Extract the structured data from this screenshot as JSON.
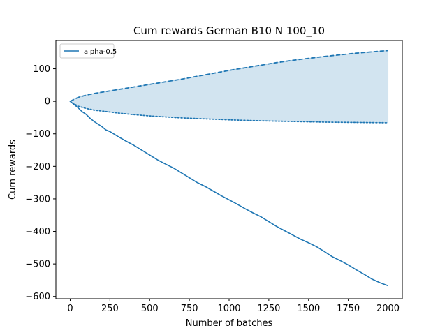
{
  "chart_data": {
    "type": "line",
    "title": "Cum rewards German B10 N 100_10",
    "xlabel": "Number of batches",
    "ylabel": "Cum rewards",
    "xlim": [
      -90,
      2090
    ],
    "ylim": [
      -607,
      187
    ],
    "xticks": [
      0,
      250,
      500,
      750,
      1000,
      1250,
      1500,
      1750,
      2000
    ],
    "yticks": [
      -600,
      -500,
      -400,
      -300,
      -200,
      -100,
      0,
      100
    ],
    "grid": false,
    "legend_position": "top-left",
    "colors": {
      "line": "#1f77b4",
      "band": "#1f77b4",
      "band_opacity": 0.2
    },
    "series": [
      {
        "name": "alpha-0.5",
        "style": "solid",
        "x": [
          0,
          25,
          50,
          75,
          100,
          125,
          150,
          175,
          200,
          225,
          250,
          300,
          350,
          400,
          450,
          500,
          550,
          600,
          650,
          700,
          750,
          800,
          850,
          900,
          950,
          1000,
          1050,
          1100,
          1150,
          1200,
          1250,
          1300,
          1350,
          1400,
          1450,
          1500,
          1550,
          1600,
          1650,
          1700,
          1750,
          1800,
          1850,
          1900,
          1950,
          2000
        ],
        "y": [
          0,
          -10,
          -20,
          -32,
          -40,
          -52,
          -62,
          -70,
          -78,
          -88,
          -93,
          -108,
          -122,
          -135,
          -150,
          -165,
          -180,
          -193,
          -205,
          -220,
          -235,
          -250,
          -262,
          -276,
          -290,
          -303,
          -316,
          -330,
          -343,
          -355,
          -370,
          -385,
          -398,
          -411,
          -424,
          -435,
          -447,
          -462,
          -478,
          -490,
          -503,
          -518,
          -532,
          -547,
          -558,
          -567
        ]
      },
      {
        "style": "dashed",
        "x": [
          0,
          25,
          50,
          100,
          150,
          200,
          250,
          300,
          400,
          500,
          600,
          700,
          800,
          900,
          1000,
          1100,
          1200,
          1300,
          1400,
          1500,
          1600,
          1700,
          1800,
          1900,
          2000
        ],
        "y": [
          0,
          6,
          12,
          19,
          24,
          28,
          32,
          36,
          44,
          52,
          60,
          68,
          77,
          86,
          95,
          103,
          111,
          119,
          126,
          132,
          138,
          143,
          148,
          152,
          156
        ]
      },
      {
        "style": "dotted",
        "x": [
          0,
          25,
          50,
          100,
          150,
          200,
          250,
          300,
          400,
          500,
          600,
          700,
          800,
          900,
          1000,
          1100,
          1200,
          1300,
          1400,
          1500,
          1600,
          1700,
          1800,
          1900,
          2000
        ],
        "y": [
          0,
          -8,
          -15,
          -22,
          -27,
          -30,
          -33,
          -36,
          -41,
          -45,
          -48,
          -51,
          -53,
          -55,
          -57,
          -58.5,
          -60,
          -61,
          -62,
          -63,
          -64,
          -64.5,
          -65,
          -65.5,
          -66
        ]
      }
    ]
  }
}
